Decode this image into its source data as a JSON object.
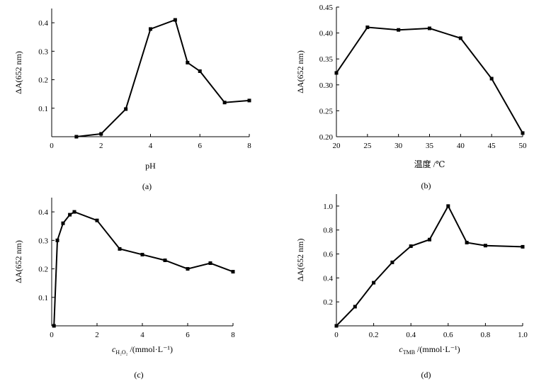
{
  "chart_data": [
    {
      "type": "line",
      "panel_label": "(a)",
      "xlabel": "pH",
      "ylabel": "ΔA(652 nm)",
      "xlim": [
        0,
        8
      ],
      "ylim": [
        0,
        0.45
      ],
      "xticks": [
        0,
        2,
        4,
        6,
        8
      ],
      "yticks": [
        0.1,
        0.2,
        0.3,
        0.4
      ],
      "x_tick_labels": [
        "0",
        "2",
        "4",
        "6",
        "8"
      ],
      "y_tick_labels": [
        "0.1",
        "0.2",
        "0.3",
        "0.4"
      ],
      "x": [
        1,
        2,
        3,
        4,
        5,
        5.5,
        6,
        7,
        8
      ],
      "y": [
        0.0,
        0.01,
        0.097,
        0.378,
        0.41,
        0.26,
        0.23,
        0.12,
        0.127
      ]
    },
    {
      "type": "line",
      "panel_label": "(b)",
      "xlabel": "温度 /℃",
      "ylabel": "ΔA(652 nm)",
      "xlim": [
        20,
        50
      ],
      "ylim": [
        0.2,
        0.45
      ],
      "xticks": [
        20,
        25,
        30,
        35,
        40,
        45,
        50
      ],
      "yticks": [
        0.2,
        0.25,
        0.3,
        0.35,
        0.4,
        0.45
      ],
      "x_tick_labels": [
        "20",
        "25",
        "30",
        "35",
        "40",
        "45",
        "50"
      ],
      "y_tick_labels": [
        "0.20",
        "0.25",
        "0.30",
        "0.35",
        "0.40",
        "0.45"
      ],
      "x": [
        20,
        25,
        30,
        35,
        40,
        45,
        50
      ],
      "y": [
        0.323,
        0.411,
        0.406,
        0.409,
        0.39,
        0.312,
        0.207
      ]
    },
    {
      "type": "line",
      "panel_label": "(c)",
      "xlabel_var": "c",
      "xlabel_sub": "H₂O₂",
      "xlabel_unit": "/(mmol·L⁻¹)",
      "ylabel": "ΔA(652 nm)",
      "xlim": [
        0,
        8
      ],
      "ylim": [
        0,
        0.45
      ],
      "xticks": [
        0,
        2,
        4,
        6,
        8
      ],
      "yticks": [
        0.1,
        0.2,
        0.3,
        0.4
      ],
      "x_tick_labels": [
        "0",
        "2",
        "4",
        "6",
        "8"
      ],
      "y_tick_labels": [
        "0.1",
        "0.2",
        "0.3",
        "0.4"
      ],
      "x": [
        0.1,
        0.25,
        0.5,
        0.8,
        1.0,
        2.0,
        3.0,
        4.0,
        5.0,
        6.0,
        7.0,
        8.0
      ],
      "y": [
        0.0,
        0.3,
        0.36,
        0.39,
        0.4,
        0.37,
        0.27,
        0.25,
        0.23,
        0.2,
        0.22,
        0.19
      ]
    },
    {
      "type": "line",
      "panel_label": "(d)",
      "xlabel_var": "c",
      "xlabel_sub": "TMB",
      "xlabel_unit": "/(mmol·L⁻¹)",
      "ylabel": "ΔA(652 nm)",
      "xlim": [
        0,
        1.0
      ],
      "ylim": [
        0,
        1.1
      ],
      "xticks": [
        0,
        0.2,
        0.4,
        0.6,
        0.8,
        1.0
      ],
      "yticks": [
        0.2,
        0.4,
        0.6,
        0.8,
        1.0
      ],
      "x_tick_labels": [
        "0",
        "0.2",
        "0.4",
        "0.6",
        "0.8",
        "1.0"
      ],
      "y_tick_labels": [
        "0.2",
        "0.4",
        "0.6",
        "0.8",
        "1.0"
      ],
      "x": [
        0.0,
        0.1,
        0.2,
        0.3,
        0.4,
        0.5,
        0.6,
        0.7,
        0.8,
        1.0
      ],
      "y": [
        0.0,
        0.16,
        0.36,
        0.53,
        0.665,
        0.72,
        1.0,
        0.695,
        0.67,
        0.66
      ]
    }
  ]
}
